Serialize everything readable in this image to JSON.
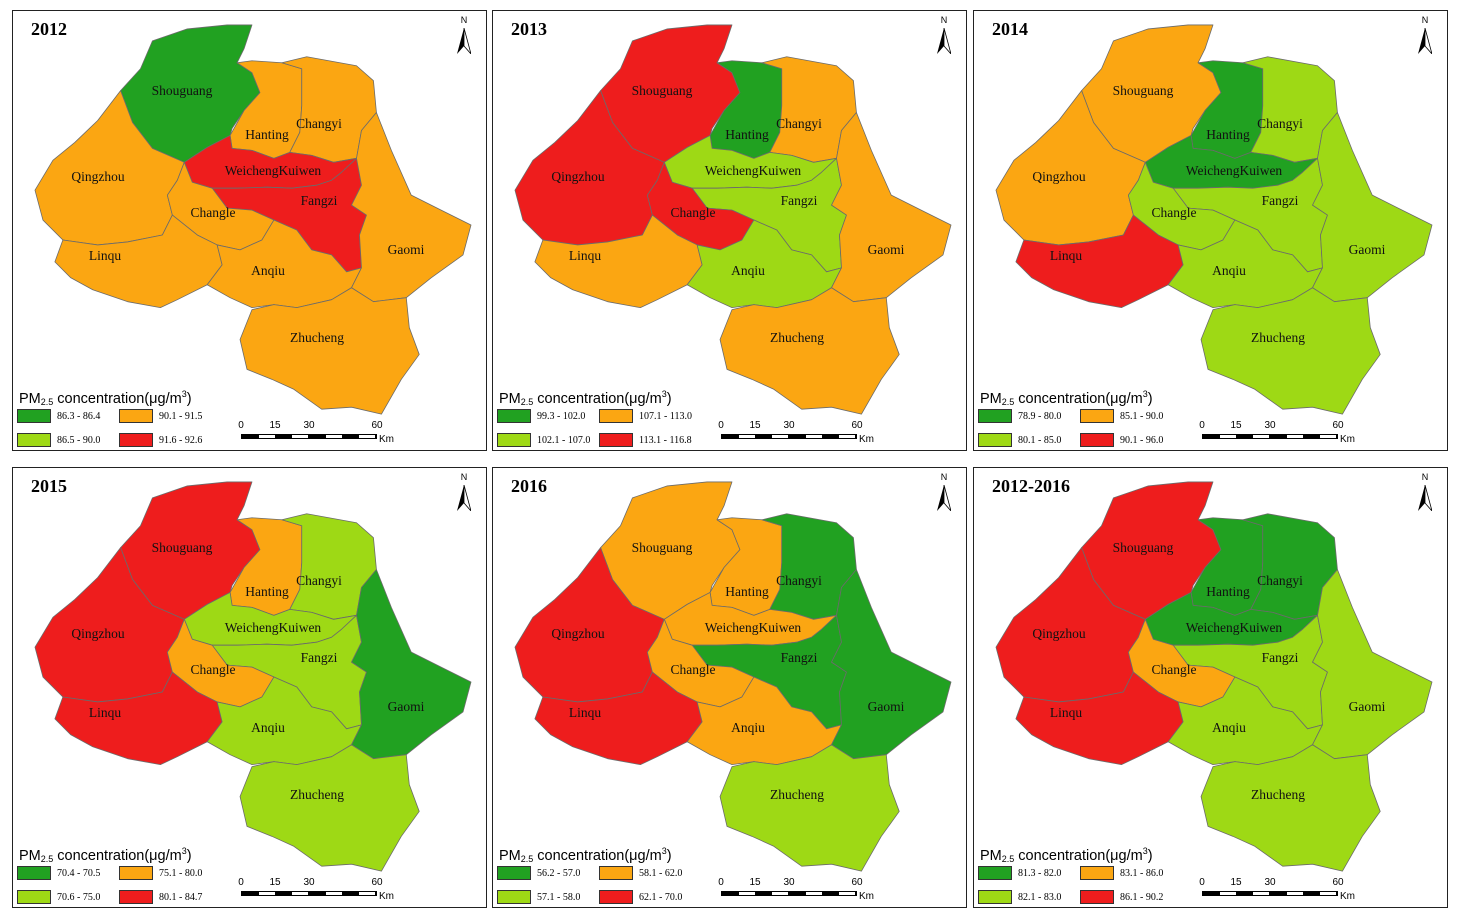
{
  "colors": {
    "dark_green": "#21a121",
    "light_green": "#9ed915",
    "orange": "#fba612",
    "red": "#ee1d1d",
    "border": "#6b6b6b"
  },
  "legend_title_parts": {
    "pm": "PM",
    "sub": "2.5",
    "mid": " concentration(μg/m",
    "sup": "3",
    "end": ")"
  },
  "scale_bar": {
    "ticks": [
      "0",
      "15",
      "30",
      "60"
    ],
    "unit": "Km"
  },
  "north_label": "N",
  "county_names": [
    "Shouguang",
    "Hanting",
    "Changyi",
    "Qingzhou",
    "WeichengKuiwen",
    "Fangzi",
    "Changle",
    "Linqu",
    "Anqiu",
    "Gaomi",
    "Zhucheng"
  ],
  "panels": [
    {
      "title": "2012",
      "legend": [
        {
          "c": "dark_green",
          "t": "86.3 - 86.4"
        },
        {
          "c": "orange",
          "t": "90.1 - 91.5"
        },
        {
          "c": "light_green",
          "t": "86.5 - 90.0"
        },
        {
          "c": "red",
          "t": "91.6 - 92.6"
        }
      ],
      "regions": {
        "Shouguang": "dark_green",
        "Hanting": "orange",
        "Changyi": "orange",
        "Qingzhou": "orange",
        "WeichengKuiwen": "red",
        "Fangzi": "red",
        "Changle": "orange",
        "Linqu": "orange",
        "Anqiu": "orange",
        "Gaomi": "orange",
        "Zhucheng": "orange"
      }
    },
    {
      "title": "2013",
      "legend": [
        {
          "c": "dark_green",
          "t": "99.3 - 102.0"
        },
        {
          "c": "orange",
          "t": "107.1 - 113.0"
        },
        {
          "c": "light_green",
          "t": "102.1 - 107.0"
        },
        {
          "c": "red",
          "t": "113.1 - 116.8"
        }
      ],
      "regions": {
        "Shouguang": "red",
        "Hanting": "dark_green",
        "Changyi": "orange",
        "Qingzhou": "red",
        "WeichengKuiwen": "light_green",
        "Fangzi": "light_green",
        "Changle": "red",
        "Linqu": "orange",
        "Anqiu": "light_green",
        "Gaomi": "orange",
        "Zhucheng": "orange"
      }
    },
    {
      "title": "2014",
      "legend": [
        {
          "c": "dark_green",
          "t": "78.9 - 80.0"
        },
        {
          "c": "orange",
          "t": "85.1 - 90.0"
        },
        {
          "c": "light_green",
          "t": "80.1 - 85.0"
        },
        {
          "c": "red",
          "t": "90.1 - 96.0"
        }
      ],
      "regions": {
        "Shouguang": "orange",
        "Hanting": "dark_green",
        "Changyi": "light_green",
        "Qingzhou": "orange",
        "WeichengKuiwen": "dark_green",
        "Fangzi": "light_green",
        "Changle": "light_green",
        "Linqu": "red",
        "Anqiu": "light_green",
        "Gaomi": "light_green",
        "Zhucheng": "light_green"
      }
    },
    {
      "title": "2015",
      "legend": [
        {
          "c": "dark_green",
          "t": "70.4 - 70.5"
        },
        {
          "c": "orange",
          "t": "75.1 - 80.0"
        },
        {
          "c": "light_green",
          "t": "70.6 - 75.0"
        },
        {
          "c": "red",
          "t": "80.1 - 84.7"
        }
      ],
      "regions": {
        "Shouguang": "red",
        "Hanting": "orange",
        "Changyi": "light_green",
        "Qingzhou": "red",
        "WeichengKuiwen": "light_green",
        "Fangzi": "light_green",
        "Changle": "orange",
        "Linqu": "red",
        "Anqiu": "light_green",
        "Gaomi": "dark_green",
        "Zhucheng": "light_green"
      }
    },
    {
      "title": "2016",
      "legend": [
        {
          "c": "dark_green",
          "t": "56.2 - 57.0"
        },
        {
          "c": "orange",
          "t": "58.1 - 62.0"
        },
        {
          "c": "light_green",
          "t": "57.1 - 58.0"
        },
        {
          "c": "red",
          "t": "62.1 - 70.0"
        }
      ],
      "regions": {
        "Shouguang": "orange",
        "Hanting": "orange",
        "Changyi": "dark_green",
        "Qingzhou": "red",
        "WeichengKuiwen": "orange",
        "Fangzi": "dark_green",
        "Changle": "orange",
        "Linqu": "red",
        "Anqiu": "orange",
        "Gaomi": "dark_green",
        "Zhucheng": "light_green"
      }
    },
    {
      "title": "2012-2016",
      "legend": [
        {
          "c": "dark_green",
          "t": "81.3 - 82.0"
        },
        {
          "c": "orange",
          "t": "83.1 - 86.0"
        },
        {
          "c": "light_green",
          "t": "82.1 - 83.0"
        },
        {
          "c": "red",
          "t": "86.1 - 90.2"
        }
      ],
      "regions": {
        "Shouguang": "red",
        "Hanting": "dark_green",
        "Changyi": "dark_green",
        "Qingzhou": "red",
        "WeichengKuiwen": "dark_green",
        "Fangzi": "light_green",
        "Changle": "orange",
        "Linqu": "red",
        "Anqiu": "light_green",
        "Gaomi": "light_green",
        "Zhucheng": "light_green"
      }
    }
  ]
}
